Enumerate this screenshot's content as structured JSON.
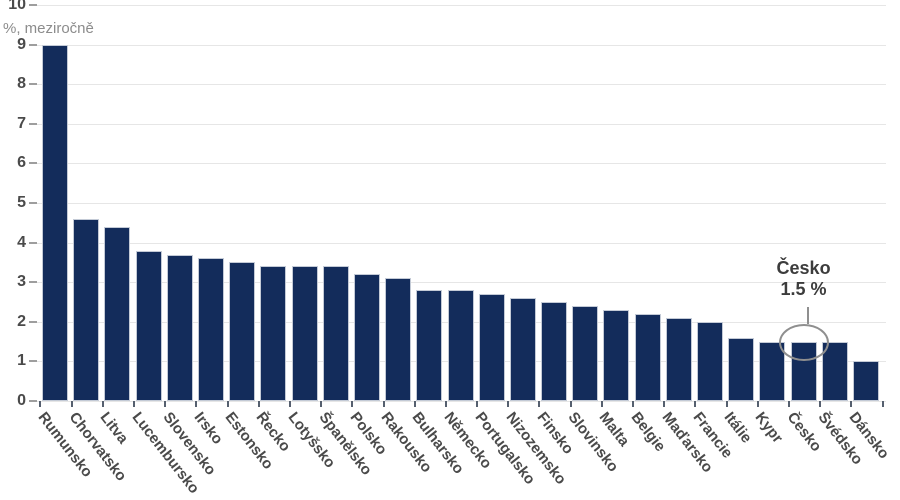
{
  "chart_data": {
    "type": "bar",
    "title": "",
    "unit_label": "%, meziročně",
    "categories": [
      "Rumunsko",
      "Chorvatsko",
      "Litva",
      "Lucembursko",
      "Slovensko",
      "Irsko",
      "Estonsko",
      "Řecko",
      "Lotyšsko",
      "Španělsko",
      "Polsko",
      "Rakousko",
      "Bulharsko",
      "Německo",
      "Portugalsko",
      "Nizozemsko",
      "Finsko",
      "Slovinsko",
      "Malta",
      "Belgie",
      "Maďarsko",
      "Francie",
      "Itálie",
      "Kypr",
      "Česko",
      "Švédsko",
      "Dánsko"
    ],
    "values": [
      9.0,
      4.6,
      4.4,
      3.8,
      3.7,
      3.6,
      3.5,
      3.4,
      3.4,
      3.4,
      3.2,
      3.1,
      2.8,
      2.8,
      2.7,
      2.6,
      2.5,
      2.4,
      2.3,
      2.2,
      2.1,
      2.0,
      1.6,
      1.5,
      1.5,
      1.5,
      1.0
    ],
    "ylim": [
      0,
      10
    ],
    "yticks": [
      0,
      1,
      2,
      3,
      4,
      5,
      6,
      7,
      8,
      9,
      10
    ],
    "grid": "horizontal",
    "legend": "none",
    "annotation": {
      "target": "Česko",
      "line1": "Česko",
      "line2": "1.5 %"
    }
  },
  "colors": {
    "bar": "#132c5b",
    "bar_outline": "#c3cad6",
    "gridline": "#e6e6e6",
    "axis_text": "#4a4a4a",
    "unit_text": "#8c8c8c",
    "annotation_text": "#3c3c3c",
    "annotation_stroke": "#8f8f8f"
  }
}
